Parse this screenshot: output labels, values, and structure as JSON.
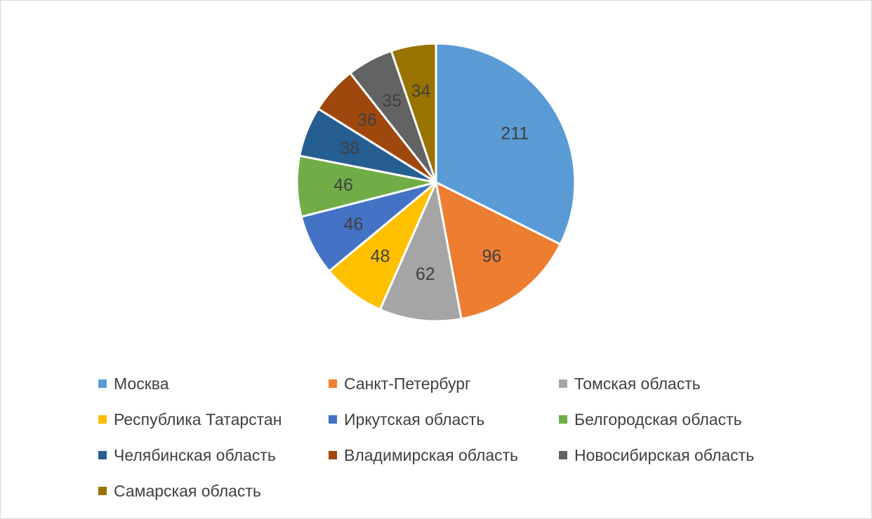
{
  "chart_data": {
    "type": "pie",
    "title": "",
    "slices": [
      {
        "label": "Москва",
        "value": 211,
        "color": "#5B9BD5"
      },
      {
        "label": "Санкт-Петербург",
        "value": 96,
        "color": "#ED7D31"
      },
      {
        "label": "Томская область",
        "value": 62,
        "color": "#A5A5A5"
      },
      {
        "label": "Республика Татарстан",
        "value": 48,
        "color": "#FFC000"
      },
      {
        "label": "Иркутская область",
        "value": 46,
        "color": "#4472C4"
      },
      {
        "label": "Белгородская область",
        "value": 46,
        "color": "#70AD47"
      },
      {
        "label": "Челябинская область",
        "value": 38,
        "color": "#255E91"
      },
      {
        "label": "Владимирская область",
        "value": 36,
        "color": "#9E480E"
      },
      {
        "label": "Новосибирская область",
        "value": 35,
        "color": "#636363"
      },
      {
        "label": "Самарская область",
        "value": 34,
        "color": "#997300"
      }
    ],
    "legend": "bottom",
    "data_labels": true
  }
}
